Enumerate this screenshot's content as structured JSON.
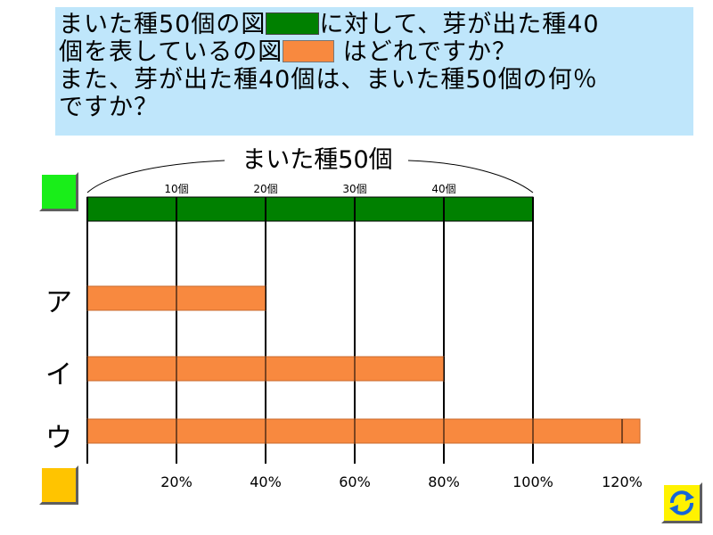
{
  "question": {
    "line1a": "まいた種50個の図",
    "line1b": "に対して、芽が出た種40",
    "line2a": "個を表しているの図",
    "line2b": "はどれですか？",
    "line3": "また、芽が出た種40個は、まいた種50個の何％",
    "line4": "ですか？"
  },
  "brace_label": "まいた種50個",
  "top_ticks": [
    "10個",
    "20個",
    "30個",
    "40個"
  ],
  "bottom_ticks": [
    "20%",
    "40%",
    "60%",
    "80%",
    "100%",
    "120%"
  ],
  "colors": {
    "base_bar": "#008000",
    "answer_bar": "#f8893f",
    "question_bg": "#bfe6fb"
  },
  "icons": {
    "refresh": "refresh-icon"
  },
  "chart_data": {
    "type": "bar",
    "orientation": "horizontal",
    "unit": "%",
    "xlim": [
      0,
      120
    ],
    "grid": true,
    "categories": [
      "",
      "ア",
      "イ",
      "ウ"
    ],
    "values": [
      100,
      40,
      80,
      124
    ],
    "top_axis_labels": [
      "10個",
      "20個",
      "30個",
      "40個"
    ],
    "bottom_axis_labels": [
      "20%",
      "40%",
      "60%",
      "80%",
      "100%",
      "120%"
    ]
  }
}
